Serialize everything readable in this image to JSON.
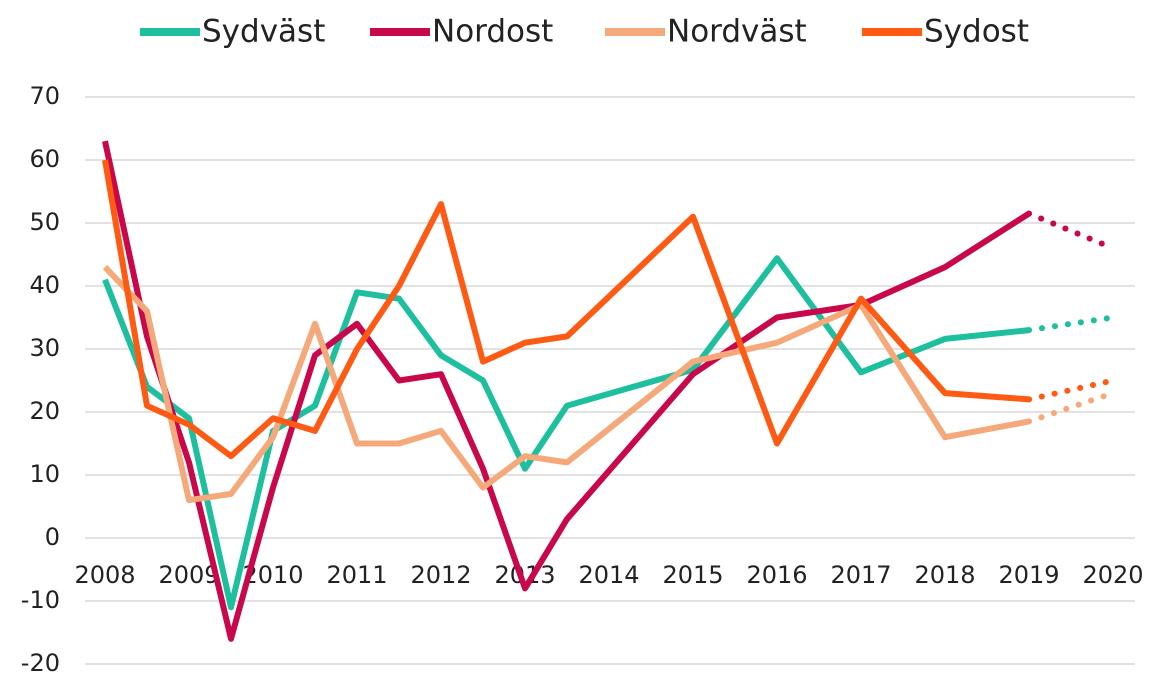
{
  "chart_data": {
    "type": "line",
    "x": [
      2008,
      2008.5,
      2009,
      2009.5,
      2010,
      2010.5,
      2011,
      2011.5,
      2012,
      2012.5,
      2013,
      2013.5,
      2015,
      2016,
      2017,
      2018,
      2019,
      2020
    ],
    "forecast_from": 2019,
    "series": [
      {
        "name": "Sydväst",
        "color": "#1dbf9f",
        "values": [
          41,
          24,
          19,
          -11,
          17,
          21,
          39,
          38,
          29,
          25,
          11,
          21,
          26.7,
          44.4,
          26.3,
          31.6,
          33,
          35
        ]
      },
      {
        "name": "Nordost",
        "color": "#c8084b",
        "values": [
          63,
          32,
          12,
          -16,
          8,
          29,
          34,
          25,
          26,
          11,
          -8,
          3,
          26,
          35,
          37,
          43,
          51.5,
          46
        ]
      },
      {
        "name": "Nordväst",
        "color": "#f5a97a",
        "values": [
          43,
          36,
          6,
          7,
          16,
          34,
          15,
          15,
          17,
          8,
          13,
          12,
          28,
          31,
          37,
          16,
          18.5,
          23
        ]
      },
      {
        "name": "Sydost",
        "color": "#ff5a14",
        "values": [
          60,
          21,
          18,
          13,
          19,
          17,
          30,
          40,
          53,
          28,
          31,
          32,
          51,
          15,
          38,
          23,
          22,
          25
        ]
      }
    ],
    "xlim": [
      2008,
      2020
    ],
    "xticks": [
      2008,
      2009,
      2010,
      2011,
      2012,
      2013,
      2014,
      2015,
      2016,
      2017,
      2018,
      2019,
      2020
    ],
    "ylim": [
      -20,
      70
    ],
    "yticks": [
      -20,
      -10,
      0,
      10,
      20,
      30,
      40,
      50,
      60,
      70
    ],
    "grid": true,
    "legend": "top"
  }
}
